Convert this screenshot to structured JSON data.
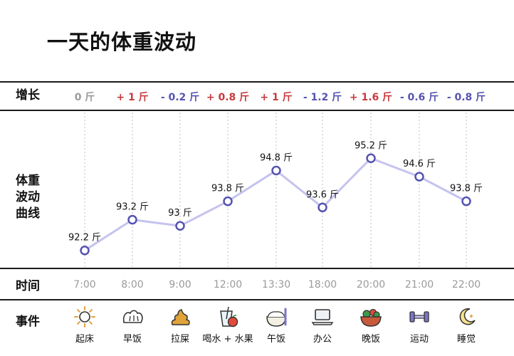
{
  "title": "一天的体重波动",
  "row_labels": {
    "change": "增长",
    "curve": [
      "体重",
      "波动",
      "曲线"
    ],
    "time": "时间",
    "event": "事件"
  },
  "point_label_suffix": " 斤",
  "chart_data": {
    "type": "line",
    "x": [
      "7:00",
      "8:00",
      "9:00",
      "12:00",
      "13:30",
      "18:00",
      "20:00",
      "21:00",
      "22:00"
    ],
    "values": [
      92.2,
      93.2,
      93,
      93.8,
      94.8,
      93.6,
      95.2,
      94.6,
      93.8
    ],
    "unit": "斤",
    "changes": [
      "0 斤",
      "+ 1 斤",
      "- 0.2 斤",
      "+ 0.8 斤",
      "+ 1 斤",
      "- 1.2 斤",
      "+ 1.6 斤",
      "- 0.6 斤",
      "- 0.8 斤"
    ],
    "ylim": [
      91.8,
      95.6
    ],
    "line_color": "#c5c3ee",
    "marker_color": "#5553b0",
    "positive_color": "#c83a3e",
    "negative_color": "#5553b0",
    "grid": "vertical-dotted"
  },
  "events": [
    {
      "label": "起床",
      "icon": "sun-icon"
    },
    {
      "label": "早饭",
      "icon": "bread-icon"
    },
    {
      "label": "拉屎",
      "icon": "poop-icon"
    },
    {
      "label": "喝水 + 水果",
      "icon": "drink-fruit-icon"
    },
    {
      "label": "午饭",
      "icon": "rice-bowl-icon"
    },
    {
      "label": "办公",
      "icon": "laptop-icon"
    },
    {
      "label": "晚饭",
      "icon": "salad-bowl-icon"
    },
    {
      "label": "运动",
      "icon": "dumbbell-icon"
    },
    {
      "label": "睡觉",
      "icon": "moon-icon"
    }
  ]
}
